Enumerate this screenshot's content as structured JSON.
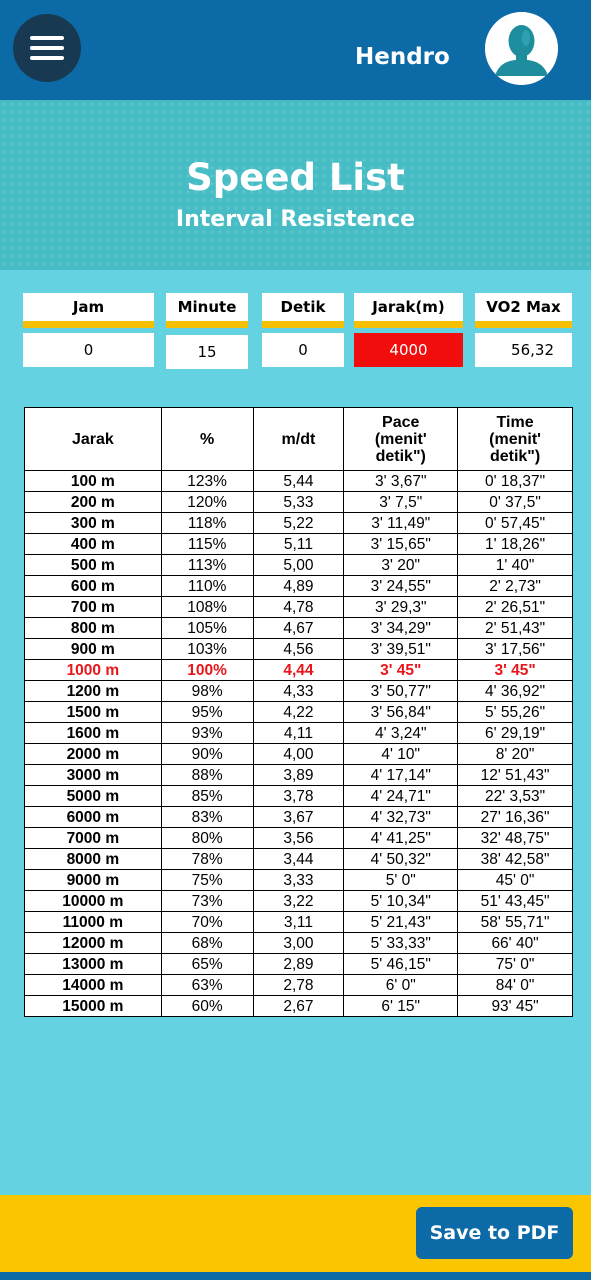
{
  "header": {
    "username": "Hendro"
  },
  "banner": {
    "title": "Speed List",
    "subtitle": "Interval Resistence"
  },
  "fields": {
    "jam": {
      "label": "Jam",
      "value": "0"
    },
    "minute": {
      "label": "Minute",
      "value": "15"
    },
    "detik": {
      "label": "Detik",
      "value": "0"
    },
    "jarak": {
      "label": "Jarak(m)",
      "value": "4000"
    },
    "vo2": {
      "label": "VO2 Max",
      "value": "56,32"
    }
  },
  "table": {
    "headers": [
      "Jarak",
      "%",
      "m/dt",
      "Pace\n(menit'\ndetik\")",
      "Time\n(menit'\ndetik\")"
    ],
    "highlight_index": 9,
    "highlight_color": "#e8161b",
    "rows": [
      [
        "100 m",
        "123%",
        "5,44",
        "3' 3,67\"",
        "0' 18,37\""
      ],
      [
        "200 m",
        "120%",
        "5,33",
        "3' 7,5\"",
        "0' 37,5\""
      ],
      [
        "300 m",
        "118%",
        "5,22",
        "3' 11,49\"",
        "0' 57,45\""
      ],
      [
        "400 m",
        "115%",
        "5,11",
        "3' 15,65\"",
        "1' 18,26\""
      ],
      [
        "500 m",
        "113%",
        "5,00",
        "3' 20\"",
        "1' 40\""
      ],
      [
        "600 m",
        "110%",
        "4,89",
        "3' 24,55\"",
        "2' 2,73\""
      ],
      [
        "700 m",
        "108%",
        "4,78",
        "3' 29,3\"",
        "2' 26,51\""
      ],
      [
        "800 m",
        "105%",
        "4,67",
        "3' 34,29\"",
        "2' 51,43\""
      ],
      [
        "900 m",
        "103%",
        "4,56",
        "3' 39,51\"",
        "3' 17,56\""
      ],
      [
        "1000 m",
        "100%",
        "4,44",
        "3' 45\"",
        "3' 45\""
      ],
      [
        "1200 m",
        "98%",
        "4,33",
        "3' 50,77\"",
        "4' 36,92\""
      ],
      [
        "1500 m",
        "95%",
        "4,22",
        "3' 56,84\"",
        "5' 55,26\""
      ],
      [
        "1600 m",
        "93%",
        "4,11",
        "4' 3,24\"",
        "6' 29,19\""
      ],
      [
        "2000 m",
        "90%",
        "4,00",
        "4' 10\"",
        "8' 20\""
      ],
      [
        "3000 m",
        "88%",
        "3,89",
        "4' 17,14\"",
        "12' 51,43\""
      ],
      [
        "5000 m",
        "85%",
        "3,78",
        "4' 24,71\"",
        "22' 3,53\""
      ],
      [
        "6000 m",
        "83%",
        "3,67",
        "4' 32,73\"",
        "27' 16,36\""
      ],
      [
        "7000 m",
        "80%",
        "3,56",
        "4' 41,25\"",
        "32' 48,75\""
      ],
      [
        "8000 m",
        "78%",
        "3,44",
        "4' 50,32\"",
        "38' 42,58\""
      ],
      [
        "9000 m",
        "75%",
        "3,33",
        "5' 0\"",
        "45' 0\""
      ],
      [
        "10000 m",
        "73%",
        "3,22",
        "5' 10,34\"",
        "51' 43,45\""
      ],
      [
        "11000 m",
        "70%",
        "3,11",
        "5' 21,43\"",
        "58' 55,71\""
      ],
      [
        "12000 m",
        "68%",
        "3,00",
        "5' 33,33\"",
        "66' 40\""
      ],
      [
        "13000 m",
        "65%",
        "2,89",
        "5' 46,15\"",
        "75' 0\""
      ],
      [
        "14000 m",
        "63%",
        "2,78",
        "6' 0\"",
        "84' 0\""
      ],
      [
        "15000 m",
        "60%",
        "2,67",
        "6' 15\"",
        "93' 45\""
      ]
    ]
  },
  "footer": {
    "save_label": "Save to PDF"
  },
  "icons": {
    "menu": "hamburger-menu-icon",
    "avatar": "user-avatar-icon"
  }
}
